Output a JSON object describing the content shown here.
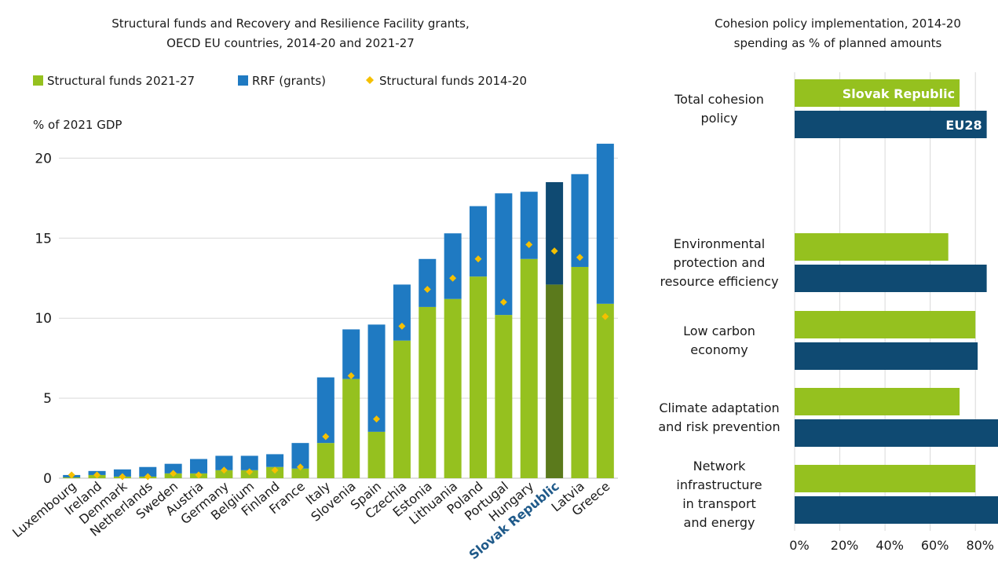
{
  "colors": {
    "structural": "#95c11f",
    "structural_highlight": "#5b7a1c",
    "rrf": "#1f7ac2",
    "rrf_highlight": "#0f4a72",
    "marker": "#f5c000",
    "slovak_label": "#1f5a8a",
    "eu28": "#0f4a72",
    "slovak_bar": "#95c11f",
    "grid": "#d9d9d9"
  },
  "chart_data": [
    {
      "type": "bar",
      "stacked": true,
      "title": "Structural funds and Recovery and Resilience Facility grants, OECD EU countries, 2014-20 and 2021-27",
      "title_lines": [
        "Structural funds and Recovery and Resilience Facility grants,",
        "OECD EU countries, 2014-20 and 2021-27"
      ],
      "ylabel": "% of 2021 GDP",
      "ylim": [
        0,
        21
      ],
      "yticks": [
        0,
        5,
        10,
        15,
        20
      ],
      "grid": true,
      "legend_position": "top",
      "categories": [
        "Luxembourg",
        "Ireland",
        "Denmark",
        "Netherlands",
        "Sweden",
        "Austria",
        "Germany",
        "Belgium",
        "Finland",
        "France",
        "Italy",
        "Slovenia",
        "Spain",
        "Czechia",
        "Estonia",
        "Lithuania",
        "Poland",
        "Portugal",
        "Hungary",
        "Slovak Republic",
        "Latvia",
        "Greece"
      ],
      "highlight_category": "Slovak Republic",
      "series": [
        {
          "name": "Structural funds 2021-27",
          "kind": "bar",
          "values": [
            0.05,
            0.2,
            0.1,
            0.1,
            0.3,
            0.3,
            0.5,
            0.5,
            0.7,
            0.6,
            2.2,
            6.2,
            2.9,
            8.6,
            10.7,
            11.2,
            12.6,
            10.2,
            13.7,
            12.1,
            13.2,
            10.9
          ]
        },
        {
          "name": "RRF (grants)",
          "kind": "bar",
          "values": [
            0.15,
            0.25,
            0.45,
            0.6,
            0.6,
            0.9,
            0.9,
            0.9,
            0.8,
            1.6,
            4.1,
            3.1,
            6.7,
            3.5,
            3.0,
            4.1,
            4.4,
            7.6,
            4.2,
            6.4,
            5.8,
            10.0
          ]
        },
        {
          "name": "Structural funds 2014-20",
          "kind": "marker",
          "values": [
            0.2,
            0.2,
            0.1,
            0.1,
            0.3,
            0.2,
            0.5,
            0.4,
            0.5,
            0.7,
            2.6,
            6.4,
            3.7,
            9.5,
            11.8,
            12.5,
            13.7,
            11.0,
            14.6,
            14.2,
            13.8,
            10.1
          ]
        }
      ]
    },
    {
      "type": "bar",
      "orientation": "horizontal",
      "title": "Cohesion policy implementation, 2014-20 spending as % of planned amounts",
      "title_lines": [
        "Cohesion policy implementation, 2014-20",
        "spending as % of planned amounts"
      ],
      "xlim": [
        0,
        90
      ],
      "xticks": [
        0,
        20,
        40,
        60,
        80
      ],
      "xtick_labels": [
        "0%",
        "20%",
        "40%",
        "60%",
        "80%"
      ],
      "grid": true,
      "categories": [
        {
          "lines": [
            "Total cohesion",
            "policy"
          ]
        },
        {
          "lines": [
            "Environmental",
            "protection and",
            "resource efficiency"
          ]
        },
        {
          "lines": [
            "Low carbon",
            "economy"
          ]
        },
        {
          "lines": [
            "Climate adaptation",
            "and risk prevention"
          ]
        },
        {
          "lines": [
            "Network",
            "infrastructure",
            "in transport",
            "and energy"
          ]
        }
      ],
      "series": [
        {
          "name": "Slovak Republic",
          "values": [
            73,
            68,
            80,
            73,
            80
          ]
        },
        {
          "name": "EU28",
          "values": [
            85,
            85,
            81,
            90,
            91
          ]
        }
      ]
    }
  ]
}
